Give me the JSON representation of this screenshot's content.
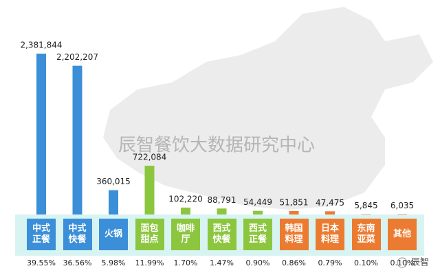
{
  "chart_data": {
    "type": "bar",
    "categories": [
      "中式\n正餐",
      "中式\n快餐",
      "火锅",
      "面包\n甜点",
      "咖啡\n厅",
      "西式\n快餐",
      "西式\n正餐",
      "韩国\n料理",
      "日本\n料理",
      "东南\n亚菜",
      "其他"
    ],
    "values": [
      2381844,
      2202207,
      360015,
      722084,
      102220,
      88791,
      54449,
      51851,
      47475,
      5845,
      6035
    ],
    "value_labels": [
      "2,381,844",
      "2,202,207",
      "360,015",
      "722,084",
      "102,220",
      "88,791",
      "54,449",
      "51,851",
      "47,475",
      "5,845",
      "6,035"
    ],
    "share_labels": [
      "39.55%",
      "36.56%",
      "5.98%",
      "11.99%",
      "1.70%",
      "1.47%",
      "0.90%",
      "0.86%",
      "0.79%",
      "0.10%",
      "0.10%"
    ],
    "colors": [
      "#3a8fd8",
      "#3a8fd8",
      "#3a8fd8",
      "#8cc63f",
      "#8cc63f",
      "#8cc63f",
      "#8cc63f",
      "#ec7b32",
      "#ec7b32",
      "#ec7b32",
      "#ec7b32"
    ],
    "watermark": "辰智餐饮大数据研究中心",
    "logo": "辰智"
  }
}
